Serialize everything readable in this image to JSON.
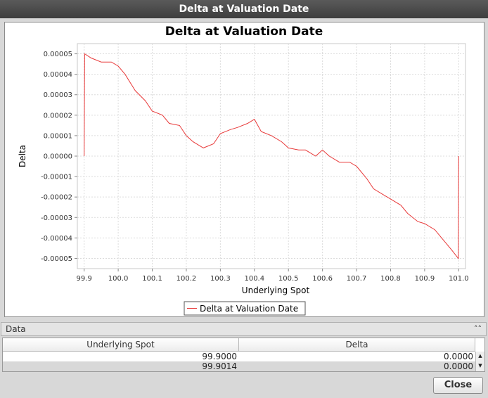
{
  "window": {
    "title": "Delta at Valuation Date"
  },
  "chart_data": {
    "type": "line",
    "title": "Delta at Valuation Date",
    "xlabel": "Underlying Spot",
    "ylabel": "Delta",
    "xlim": [
      99.88,
      101.02
    ],
    "ylim": [
      -5.5e-05,
      5.5e-05
    ],
    "x_ticks": [
      "99.9",
      "100.0",
      "100.1",
      "100.2",
      "100.3",
      "100.4",
      "100.5",
      "100.6",
      "100.7",
      "100.8",
      "100.9",
      "101.0"
    ],
    "y_ticks": [
      "0.00005",
      "0.00004",
      "0.00003",
      "0.00002",
      "0.00001",
      "0.00000",
      "-0.00001",
      "-0.00002",
      "-0.00003",
      "-0.00004",
      "-0.00005"
    ],
    "grid": true,
    "legend": "bottom-center",
    "line_color": "#e83a3a",
    "series": [
      {
        "name": "Delta at Valuation Date",
        "x": [
          99.9,
          99.9014,
          99.92,
          99.95,
          99.98,
          100.0,
          100.02,
          100.05,
          100.08,
          100.1,
          100.13,
          100.15,
          100.18,
          100.2,
          100.22,
          100.25,
          100.28,
          100.3,
          100.33,
          100.35,
          100.38,
          100.4,
          100.42,
          100.45,
          100.48,
          100.5,
          100.53,
          100.55,
          100.58,
          100.6,
          100.62,
          100.65,
          100.68,
          100.7,
          100.73,
          100.75,
          100.78,
          100.8,
          100.83,
          100.85,
          100.88,
          100.9,
          100.93,
          100.95,
          100.98,
          100.999,
          101.0
        ],
        "y": [
          0.0,
          5e-05,
          4.8e-05,
          4.6e-05,
          4.6e-05,
          4.4e-05,
          4e-05,
          3.2e-05,
          2.7e-05,
          2.2e-05,
          2e-05,
          1.6e-05,
          1.5e-05,
          1e-05,
          7e-06,
          4e-06,
          6e-06,
          1.1e-05,
          1.3e-05,
          1.4e-05,
          1.6e-05,
          1.8e-05,
          1.2e-05,
          1e-05,
          7e-06,
          4e-06,
          3e-06,
          3e-06,
          0.0,
          3e-06,
          0.0,
          -3e-06,
          -3e-06,
          -5e-06,
          -1.1e-05,
          -1.6e-05,
          -1.9e-05,
          -2.1e-05,
          -2.4e-05,
          -2.8e-05,
          -3.2e-05,
          -3.3e-05,
          -3.6e-05,
          -4e-05,
          -4.6e-05,
          -5e-05,
          0.0
        ]
      }
    ]
  },
  "data_panel": {
    "title": "Data",
    "collapse_icon": "double-chevron-up-icon"
  },
  "table": {
    "columns": [
      "Underlying Spot",
      "Delta"
    ],
    "rows": [
      [
        "99.9000",
        "0.0000"
      ],
      [
        "99.9014",
        "0.0000"
      ]
    ]
  },
  "buttons": {
    "close": "Close"
  }
}
